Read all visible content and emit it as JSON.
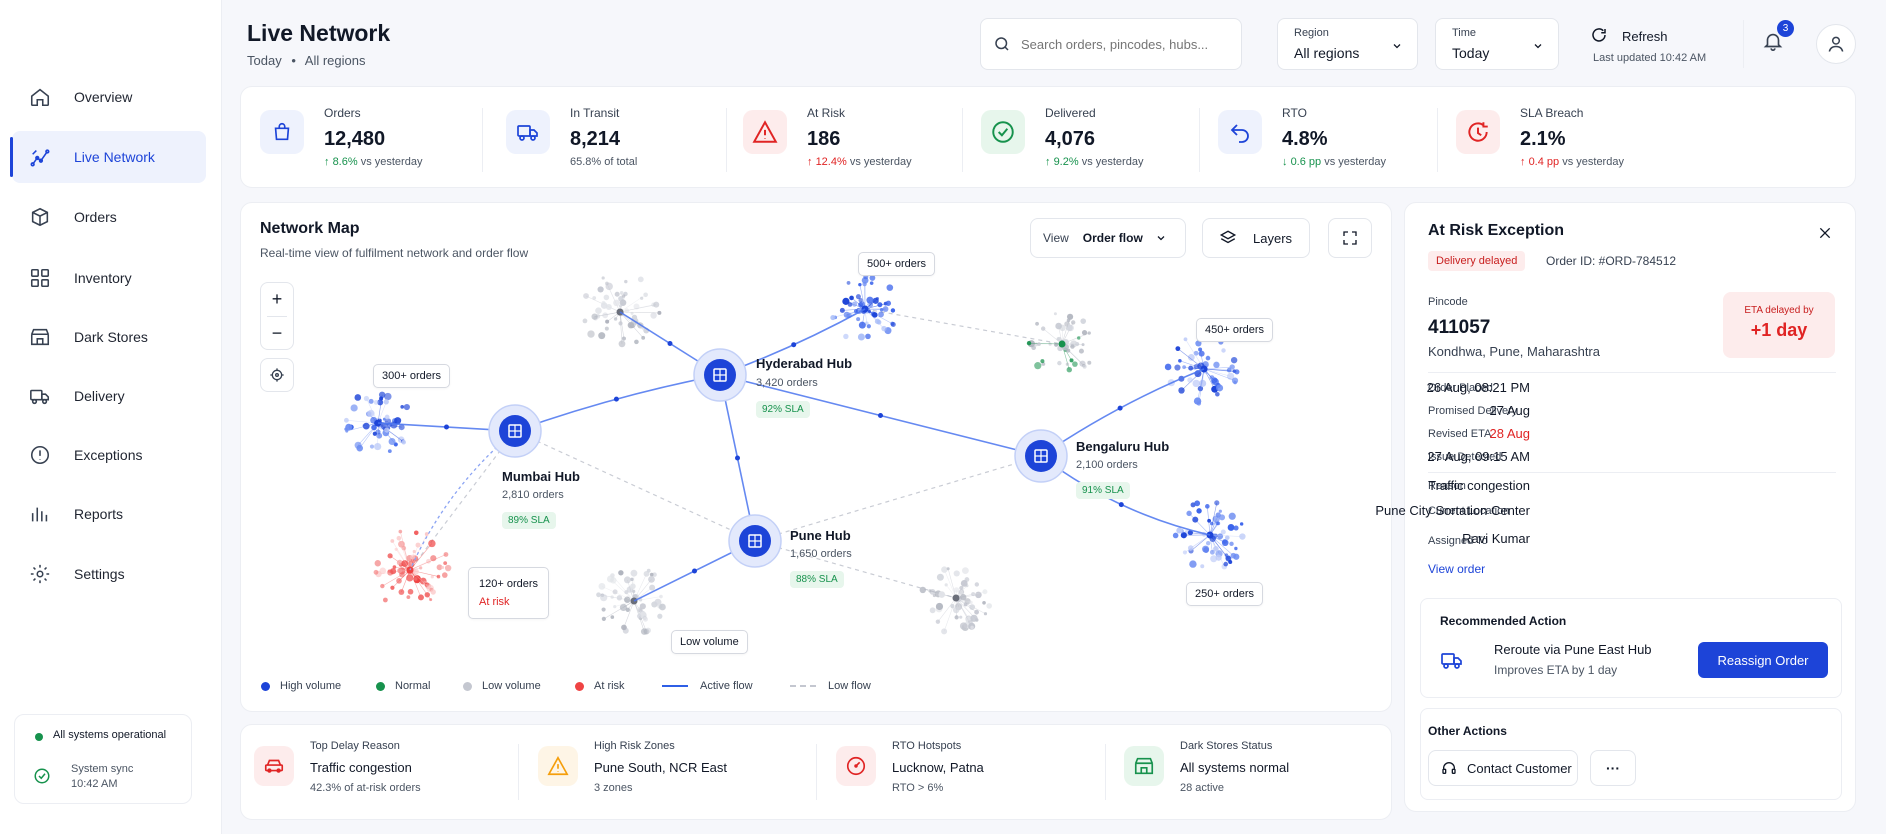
{
  "header": {
    "title": "Live Network",
    "subtitle_day": "Today",
    "subtitle_sep": "•",
    "subtitle_region": "All regions",
    "search_placeholder": "Search orders, pincodes, hubs...",
    "region_label": "Region",
    "region_value": "All regions",
    "time_label": "Time",
    "time_value": "Today",
    "refresh_label": "Refresh",
    "last_updated": "Last updated 10:42 AM",
    "notif_count": "3"
  },
  "sidebar": {
    "items": [
      {
        "label": "Overview"
      },
      {
        "label": "Live Network"
      },
      {
        "label": "Orders"
      },
      {
        "label": "Inventory"
      },
      {
        "label": "Dark Stores"
      },
      {
        "label": "Delivery"
      },
      {
        "label": "Exceptions"
      },
      {
        "label": "Reports"
      },
      {
        "label": "Settings"
      }
    ],
    "status": "All systems operational",
    "sync_label": "System sync",
    "sync_time": "10:42 AM"
  },
  "kpis": [
    {
      "title": "Orders",
      "value": "12,480",
      "delta": "8.6%",
      "rest": " vs yesterday"
    },
    {
      "title": "In Transit",
      "value": "8,214",
      "delta": "",
      "rest": "65.8% of total"
    },
    {
      "title": "At Risk",
      "value": "186",
      "delta": "12.4%",
      "rest": " vs yesterday"
    },
    {
      "title": "Delivered",
      "value": "4,076",
      "delta": "9.2%",
      "rest": " vs yesterday"
    },
    {
      "title": "RTO",
      "value": "4.8%",
      "delta": "0.6 pp",
      "rest": " vs yesterday"
    },
    {
      "title": "SLA Breach",
      "value": "2.1%",
      "delta": "0.4 pp",
      "rest": " vs yesterday"
    }
  ],
  "map": {
    "title": "Network Map",
    "subtitle": "Real-time view of fulfilment network and order flow",
    "view_label": "View",
    "view_value": "Order flow",
    "layers_label": "Layers",
    "hubs": [
      {
        "name": "Hyderabad Hub",
        "orders": "3,420 orders",
        "sla": "92% SLA"
      },
      {
        "name": "Mumbai Hub",
        "orders": "2,810 orders",
        "sla": "89% SLA"
      },
      {
        "name": "Bengaluru Hub",
        "orders": "2,100 orders",
        "sla": "91% SLA"
      },
      {
        "name": "Pune Hub",
        "orders": "1,650 orders",
        "sla": "88% SLA"
      }
    ],
    "callouts": {
      "c500": "500+ orders",
      "c450": "450+ orders",
      "c300": "300+ orders",
      "c120": "120+ orders",
      "c120_risk": "At risk",
      "c250": "250+ orders",
      "low": "Low volume"
    },
    "legend": {
      "high": "High volume",
      "normal": "Normal",
      "low": "Low volume",
      "risk": "At risk",
      "active": "Active flow",
      "lowflow": "Low flow"
    }
  },
  "bottom": [
    {
      "title": "Top Delay Reason",
      "value": "Traffic congestion",
      "sub": "42.3% of at-risk orders"
    },
    {
      "title": "High Risk Zones",
      "value": "Pune South, NCR East",
      "sub": "3 zones"
    },
    {
      "title": "RTO Hotspots",
      "value": "Lucknow, Patna",
      "sub": "RTO > 6%"
    },
    {
      "title": "Dark Stores Status",
      "value": "All systems normal",
      "sub": "28 active"
    }
  ],
  "exception": {
    "title": "At Risk Exception",
    "badge": "Delivery delayed",
    "order_id": "Order ID: #ORD-784512",
    "pincode_label": "Pincode",
    "pincode": "411057",
    "location": "Kondhwa, Pune, Maharashtra",
    "eta_label": "ETA delayed by",
    "eta_value": "+1 day",
    "rows": [
      {
        "label": "Order Placed",
        "value": "26 Aug, 08:21 PM"
      },
      {
        "label": "Promised Delivery",
        "value": "27 Aug"
      },
      {
        "label": "Revised ETA",
        "value": "28 Aug"
      },
      {
        "label": "Issue Detected",
        "value": "27 Aug, 09:15 AM"
      },
      {
        "label": "Reason",
        "value": "Traffic congestion"
      },
      {
        "label": "Current Location",
        "value": "Pune City Sortation Center"
      },
      {
        "label": "Assigned To",
        "value": "Ravi Kumar"
      }
    ],
    "view_order": "View order",
    "rec_title": "Recommended Action",
    "rec_main": "Reroute via Pune East Hub",
    "rec_sub": "Improves ETA by 1 day",
    "reassign": "Reassign Order",
    "other_title": "Other Actions",
    "contact": "Contact Customer",
    "more": "···"
  },
  "colors": {
    "primary": "#1d44d8",
    "success": "#17924d",
    "danger": "#e02424",
    "warning": "#f59e0b"
  }
}
